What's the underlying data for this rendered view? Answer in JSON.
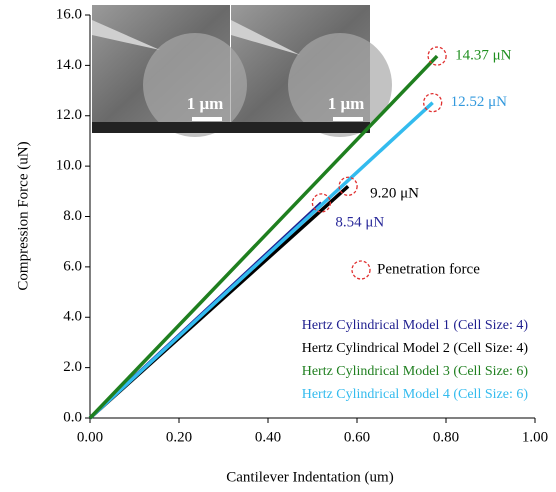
{
  "chart_data": {
    "type": "line",
    "x_label": "Cantilever Indentation (um)",
    "y_label": "Compression Force (uN)",
    "xlim": [
      0,
      1.0
    ],
    "ylim": [
      0,
      16.0
    ],
    "xticks": [
      {
        "value": 0,
        "label": "0.00"
      },
      {
        "value": 0.2,
        "label": "0.20"
      },
      {
        "value": 0.4,
        "label": "0.40"
      },
      {
        "value": 0.6,
        "label": "0.60"
      },
      {
        "value": 0.8,
        "label": "0.80"
      },
      {
        "value": 1.0,
        "label": "1.00"
      }
    ],
    "yticks": [
      {
        "value": 0,
        "label": "0.0"
      },
      {
        "value": 2,
        "label": "2.0"
      },
      {
        "value": 4,
        "label": "4.0"
      },
      {
        "value": 6,
        "label": "6.0"
      },
      {
        "value": 8,
        "label": "8.0"
      },
      {
        "value": 10,
        "label": "10.0"
      },
      {
        "value": 12,
        "label": "12.0"
      },
      {
        "value": 14,
        "label": "14.0"
      },
      {
        "value": 16,
        "label": "16.0"
      }
    ],
    "series": [
      {
        "name": "Hertz Cylindrical Model 1 (Cell Size: 4)",
        "color": "#1f1f8f",
        "x": [
          0,
          0.52
        ],
        "values": [
          0,
          8.54
        ]
      },
      {
        "name": "Hertz Cylindrical Model 2 (Cell Size: 4)",
        "color": "#000000",
        "x": [
          0,
          0.58
        ],
        "values": [
          0,
          9.2
        ]
      },
      {
        "name": "Hertz Cylindrical Model 4 (Cell Size: 6)",
        "color": "#33bbee",
        "x": [
          0,
          0.77
        ],
        "values": [
          0,
          12.52
        ]
      },
      {
        "name": "Hertz Cylindrical Model 3 (Cell Size: 6)",
        "color": "#1f7f1f",
        "x": [
          0,
          0.78
        ],
        "values": [
          0,
          14.37
        ]
      }
    ],
    "legend_order": [
      0,
      1,
      3,
      2
    ],
    "annotations": [
      {
        "text": "14.37 μN",
        "x": 0.78,
        "y": 14.37,
        "color": "#1f8f1f"
      },
      {
        "text": "12.52 μN",
        "x": 0.77,
        "y": 12.52,
        "color": "#3399dd"
      },
      {
        "text": "9.20 μN",
        "x": 0.58,
        "y": 9.2,
        "color": "#000000"
      },
      {
        "text": "8.54 μN",
        "x": 0.52,
        "y": 8.54,
        "color": "#2a2a9a"
      }
    ],
    "marker_legend": "Penetration force",
    "marker_color": "#e03030",
    "inset_scale_labels": [
      "1 μm",
      "1 μm"
    ]
  }
}
